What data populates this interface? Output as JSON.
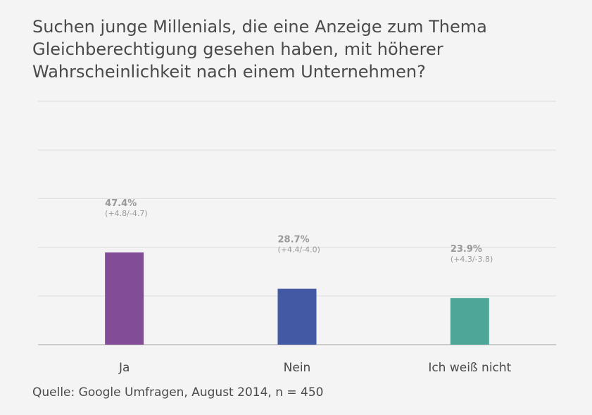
{
  "chart_data": {
    "type": "bar",
    "title": "Suchen junge Millenials, die eine Anzeige zum Thema Gleichberechtigung gesehen haben, mit höherer Wahrscheinlichkeit nach einem Unternehmen?",
    "categories": [
      "Ja",
      "Nein",
      "Ich weiß nicht"
    ],
    "values": [
      47.4,
      28.7,
      23.9
    ],
    "value_labels": [
      "47.4%",
      "28.7%",
      "23.9%"
    ],
    "error_labels": [
      "(+4.8/-4.7)",
      "(+4.4/-4.0)",
      "(+4.3/-3.8)"
    ],
    "colors": [
      "#834c96",
      "#4459a4",
      "#4ea698"
    ],
    "ylim": [
      0,
      125
    ],
    "grid_step": 25,
    "xlabel": "",
    "ylabel": ""
  },
  "source": "Quelle: Google Umfragen, August 2014, n = 450",
  "colors": {
    "background": "#f4f4f4",
    "text": "#4a4a4a",
    "label": "#999999",
    "grid": "#dddddd",
    "axis": "#bdbdbd"
  }
}
